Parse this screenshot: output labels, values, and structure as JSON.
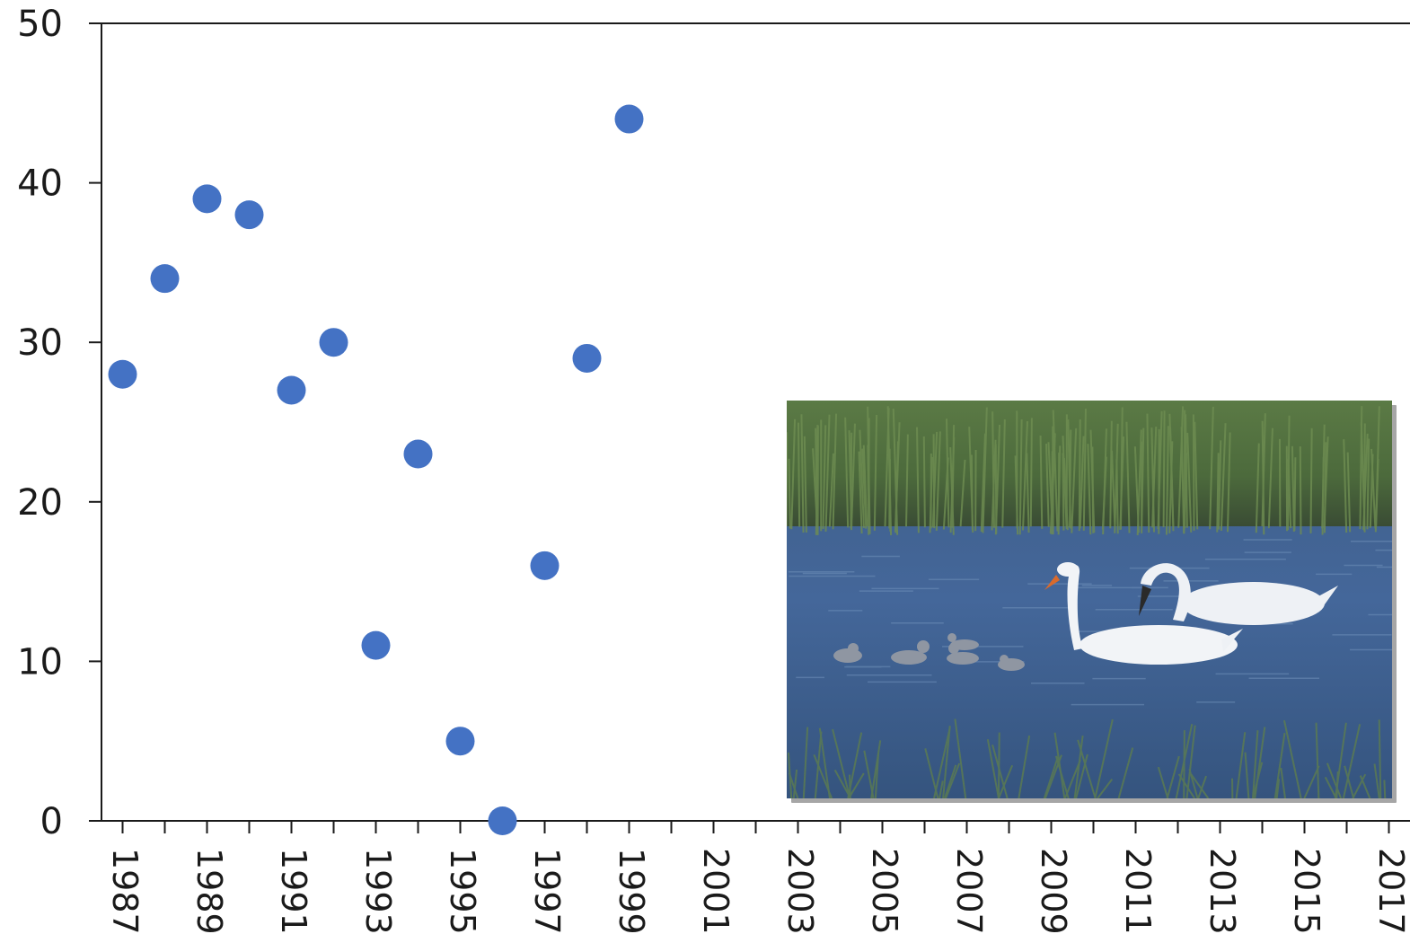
{
  "chart_data": {
    "type": "scatter",
    "x": [
      1987,
      1988,
      1989,
      1990,
      1991,
      1992,
      1993,
      1994,
      1995,
      1996,
      1997,
      1998,
      1999
    ],
    "y": [
      28,
      34,
      39,
      38,
      27,
      30,
      11,
      23,
      5,
      0,
      16,
      29,
      44
    ],
    "xlim": [
      1986.5,
      2017.5
    ],
    "ylim": [
      0,
      50
    ],
    "x_ticks": [
      1987,
      1988,
      1989,
      1990,
      1991,
      1992,
      1993,
      1994,
      1995,
      1996,
      1997,
      1998,
      1999,
      2000,
      2001,
      2002,
      2003,
      2004,
      2005,
      2006,
      2007,
      2008,
      2009,
      2010,
      2011,
      2012,
      2013,
      2014,
      2015,
      2016,
      2017
    ],
    "x_tick_labels": [
      "1987",
      "1989",
      "1991",
      "1993",
      "1995",
      "1997",
      "1999",
      "2001",
      "2003",
      "2005",
      "2007",
      "2009",
      "2011",
      "2013",
      "2015",
      "2017"
    ],
    "y_ticks": [
      0,
      10,
      20,
      30,
      40,
      50
    ],
    "y_tick_labels": [
      "0",
      "10",
      "20",
      "30",
      "40",
      "50"
    ],
    "marker_color": "#4472c4",
    "grid": false,
    "inset_image": "photo of two white swans with cygnets swimming on water in front of reeds"
  }
}
